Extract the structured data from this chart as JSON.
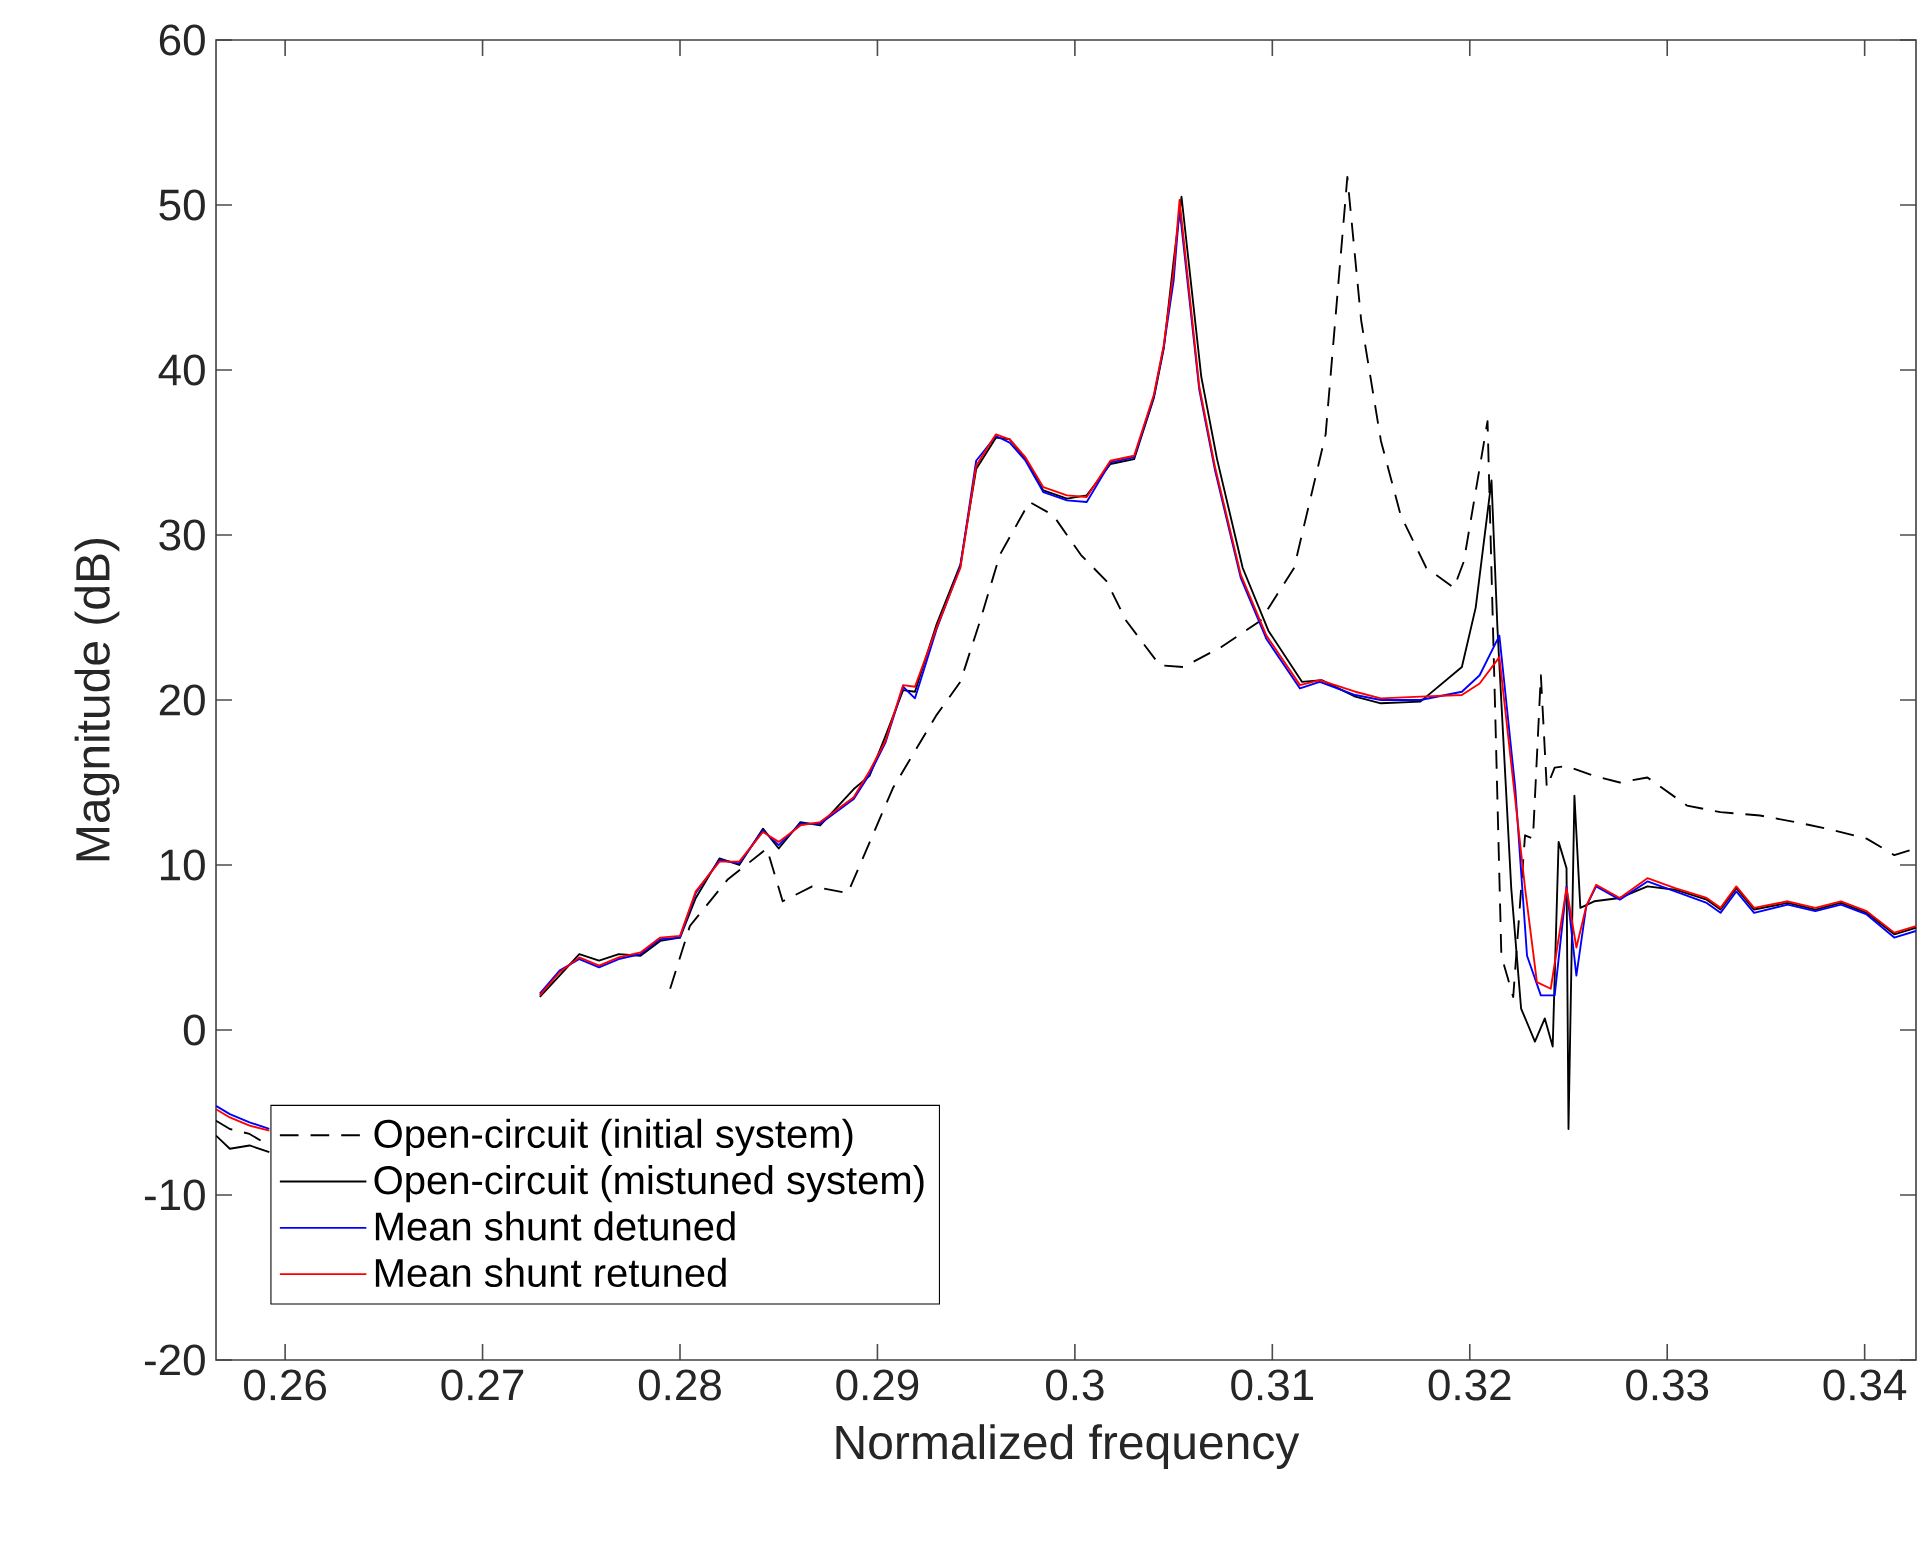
{
  "chart_data": {
    "type": "line",
    "xlabel": "Normalized frequency",
    "ylabel": "Magnitude (dB)",
    "xlim": [
      0.2565,
      0.3426
    ],
    "ylim": [
      -20,
      60
    ],
    "xticks": [
      0.26,
      0.27,
      0.28,
      0.29,
      0.3,
      0.31,
      0.32,
      0.33,
      0.34
    ],
    "yticks": [
      -20,
      -10,
      0,
      10,
      20,
      30,
      40,
      50,
      60
    ],
    "grid": false,
    "legend": "bottom left",
    "marker": "none",
    "series": [
      {
        "name": "Open-circuit (initial system)",
        "color": "#000000",
        "line_style": "dashed",
        "x": [
          0.2565,
          0.2572,
          0.2582,
          0.2589,
          0.27,
          0.2795,
          0.2805,
          0.2824,
          0.2844,
          0.2852,
          0.2867,
          0.2885,
          0.2908,
          0.293,
          0.2942,
          0.2952,
          0.2962,
          0.2977,
          0.2989,
          0.3003,
          0.3016,
          0.3026,
          0.3043,
          0.3055,
          0.3074,
          0.3094,
          0.3111,
          0.3127,
          0.3138,
          0.3145,
          0.3155,
          0.3165,
          0.3178,
          0.3192,
          0.3197,
          0.3209,
          0.3213,
          0.3216,
          0.3222,
          0.3228,
          0.3232,
          0.3236,
          0.3239,
          0.3243,
          0.3249,
          0.3263,
          0.3276,
          0.329,
          0.331,
          0.3327,
          0.3347,
          0.3365,
          0.3381,
          0.3401,
          0.3415,
          0.3426
        ],
        "values": [
          -5.5,
          -6.0,
          -6.3,
          -6.8,
          null,
          2.5,
          6.3,
          9.1,
          11.0,
          7.8,
          8.7,
          8.3,
          14.7,
          19.1,
          21.1,
          24.8,
          28.8,
          32.0,
          31.2,
          28.8,
          27.2,
          24.8,
          22.1,
          22.0,
          23.2,
          24.8,
          28.0,
          36.1,
          51.7,
          43.0,
          35.7,
          31.2,
          28.0,
          26.8,
          28.4,
          36.9,
          18.7,
          4.5,
          2.0,
          11.8,
          11.6,
          21.5,
          14.7,
          15.9,
          16.0,
          15.4,
          15.0,
          15.3,
          13.6,
          13.2,
          13.0,
          12.6,
          12.2,
          11.6,
          10.6,
          11.0
        ]
      },
      {
        "name": "Open-circuit (mistuned system)",
        "color": "#000000",
        "line_style": "solid",
        "x": [
          0.2565,
          0.2572,
          0.2582,
          0.2592,
          0.266,
          0.2729,
          0.2739,
          0.2749,
          0.2759,
          0.2769,
          0.278,
          0.279,
          0.28,
          0.2808,
          0.282,
          0.283,
          0.2842,
          0.285,
          0.2861,
          0.2871,
          0.2888,
          0.2896,
          0.2904,
          0.2913,
          0.2919,
          0.293,
          0.2942,
          0.295,
          0.296,
          0.2967,
          0.2975,
          0.2984,
          0.2996,
          0.3006,
          0.3018,
          0.303,
          0.304,
          0.3045,
          0.305,
          0.3054,
          0.3064,
          0.3072,
          0.3085,
          0.3098,
          0.3115,
          0.3125,
          0.3142,
          0.3155,
          0.3175,
          0.3196,
          0.3203,
          0.3211,
          0.3214,
          0.3221,
          0.3226,
          0.3233,
          0.3238,
          0.3242,
          0.3245,
          0.3249,
          0.325,
          0.3253,
          0.3256,
          0.3263,
          0.3276,
          0.329,
          0.3304,
          0.332,
          0.3327,
          0.3335,
          0.3344,
          0.3361,
          0.3375,
          0.3388,
          0.3401,
          0.3415,
          0.3426
        ],
        "values": [
          -6.4,
          -7.2,
          -7.0,
          -7.4,
          null,
          2.0,
          3.3,
          4.6,
          4.2,
          4.6,
          4.5,
          5.4,
          5.6,
          8.0,
          10.4,
          10.0,
          12.2,
          11.0,
          12.6,
          12.4,
          14.6,
          15.4,
          17.8,
          20.6,
          20.5,
          24.6,
          28.2,
          34.0,
          35.9,
          35.8,
          34.6,
          32.7,
          32.2,
          32.4,
          34.3,
          34.6,
          38.3,
          41.3,
          46.6,
          50.5,
          39.6,
          34.6,
          28.0,
          24.2,
          21.1,
          21.2,
          20.2,
          19.8,
          19.9,
          22.0,
          25.6,
          33.3,
          24.4,
          8.6,
          1.3,
          -0.7,
          0.7,
          -1.0,
          11.4,
          9.8,
          -6.0,
          14.2,
          7.4,
          7.8,
          8.0,
          8.7,
          8.5,
          7.9,
          7.3,
          8.6,
          7.3,
          7.7,
          7.3,
          7.7,
          7.1,
          5.8,
          6.2
        ]
      },
      {
        "name": "Mean shunt detuned",
        "color": "#0000ff",
        "line_style": "solid",
        "x": [
          0.2565,
          0.2572,
          0.2582,
          0.2592,
          0.266,
          0.2729,
          0.2739,
          0.2749,
          0.2759,
          0.2769,
          0.278,
          0.279,
          0.28,
          0.2808,
          0.282,
          0.283,
          0.2842,
          0.285,
          0.2861,
          0.2871,
          0.2888,
          0.2896,
          0.2904,
          0.2913,
          0.2919,
          0.293,
          0.2942,
          0.295,
          0.296,
          0.2967,
          0.2975,
          0.2984,
          0.2996,
          0.3006,
          0.3018,
          0.303,
          0.304,
          0.3045,
          0.305,
          0.3053,
          0.3063,
          0.3071,
          0.3084,
          0.3097,
          0.3114,
          0.3124,
          0.3142,
          0.3155,
          0.3175,
          0.3196,
          0.3205,
          0.3215,
          0.3223,
          0.3229,
          0.3236,
          0.3243,
          0.3249,
          0.3254,
          0.3259,
          0.3264,
          0.3276,
          0.329,
          0.3304,
          0.332,
          0.3327,
          0.3335,
          0.3344,
          0.3361,
          0.3375,
          0.3388,
          0.3401,
          0.3415,
          0.3426
        ],
        "values": [
          -4.6,
          -5.1,
          -5.6,
          -6.0,
          null,
          2.2,
          3.6,
          4.3,
          3.8,
          4.3,
          4.6,
          5.5,
          5.6,
          8.3,
          10.3,
          10.1,
          12.1,
          11.2,
          12.5,
          12.5,
          14.0,
          15.5,
          17.4,
          20.8,
          20.1,
          24.3,
          28.1,
          34.5,
          36.0,
          35.6,
          34.5,
          32.6,
          32.1,
          32.0,
          34.4,
          34.7,
          38.4,
          41.4,
          45.4,
          49.8,
          38.8,
          33.9,
          27.4,
          23.7,
          20.7,
          21.1,
          20.3,
          20.0,
          20.0,
          20.5,
          21.5,
          23.9,
          14.7,
          4.5,
          2.1,
          2.1,
          8.7,
          3.3,
          7.5,
          8.7,
          7.9,
          9.0,
          8.4,
          7.7,
          7.1,
          8.4,
          7.1,
          7.6,
          7.2,
          7.6,
          7.0,
          5.6,
          6.0
        ]
      },
      {
        "name": "Mean shunt retuned",
        "color": "#ff0000",
        "line_style": "solid",
        "x": [
          0.2565,
          0.2572,
          0.2582,
          0.2592,
          0.266,
          0.2729,
          0.2739,
          0.2749,
          0.2759,
          0.2769,
          0.278,
          0.279,
          0.28,
          0.2808,
          0.282,
          0.283,
          0.2842,
          0.285,
          0.2861,
          0.2871,
          0.2888,
          0.2896,
          0.2904,
          0.2913,
          0.2919,
          0.293,
          0.2942,
          0.295,
          0.296,
          0.2967,
          0.2975,
          0.2984,
          0.2996,
          0.3006,
          0.3018,
          0.303,
          0.304,
          0.3045,
          0.305,
          0.3053,
          0.3063,
          0.3071,
          0.3084,
          0.3097,
          0.3114,
          0.3124,
          0.3142,
          0.3155,
          0.3175,
          0.3196,
          0.3205,
          0.3215,
          0.3228,
          0.3234,
          0.3241,
          0.3249,
          0.3254,
          0.3259,
          0.3264,
          0.3276,
          0.329,
          0.3304,
          0.332,
          0.3327,
          0.3335,
          0.3344,
          0.3361,
          0.3375,
          0.3388,
          0.3401,
          0.3415,
          0.3426
        ],
        "values": [
          -4.8,
          -5.3,
          -5.8,
          -6.1,
          null,
          2.1,
          3.5,
          4.4,
          3.9,
          4.4,
          4.7,
          5.6,
          5.7,
          8.4,
          10.2,
          10.2,
          12.0,
          11.4,
          12.4,
          12.6,
          14.1,
          15.7,
          17.5,
          20.9,
          20.8,
          24.4,
          28.0,
          34.2,
          36.1,
          35.8,
          34.7,
          32.9,
          32.4,
          32.3,
          34.5,
          34.8,
          38.5,
          41.5,
          46.0,
          50.3,
          39.0,
          34.1,
          27.6,
          23.9,
          20.9,
          21.2,
          20.5,
          20.1,
          20.2,
          20.3,
          21.0,
          22.6,
          8.6,
          2.9,
          2.5,
          8.6,
          5.0,
          7.5,
          8.8,
          8.0,
          9.2,
          8.6,
          8.0,
          7.4,
          8.7,
          7.4,
          7.8,
          7.4,
          7.8,
          7.2,
          5.9,
          6.3
        ]
      }
    ]
  }
}
